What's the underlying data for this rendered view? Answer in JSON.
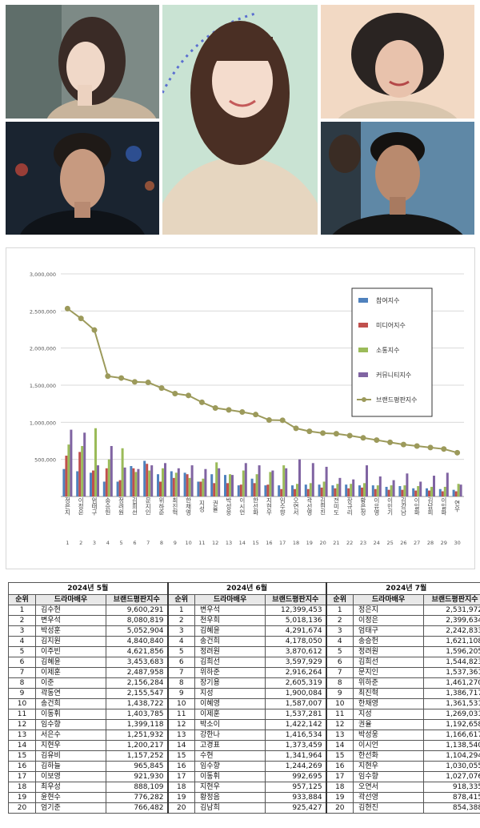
{
  "collage": {
    "photos": [
      {
        "id": "p1",
        "name": "actor-photo-top-left"
      },
      {
        "id": "p2",
        "name": "actor-photo-bottom-left"
      },
      {
        "id": "p3",
        "name": "actor-photo-center"
      },
      {
        "id": "p4",
        "name": "actor-photo-top-right"
      },
      {
        "id": "p5",
        "name": "actor-photo-bottom-right"
      }
    ]
  },
  "chart_data": {
    "type": "bar",
    "title": "",
    "xlabel": "",
    "ylabel": "",
    "ylim": [
      0,
      3000000
    ],
    "yticks": [
      "3,000,000",
      "2,500,000",
      "2,000,000",
      "1,500,000",
      "1,000,000",
      "500,000"
    ],
    "ytick_values": [
      3000000,
      2500000,
      2000000,
      1500000,
      1000000,
      500000
    ],
    "grid": true,
    "legend_position": "top-right",
    "categories": [
      "정은지",
      "이정은",
      "엄태구",
      "송승헌",
      "정려원",
      "김희선",
      "문지인",
      "위하준",
      "최진혁",
      "한채영",
      "지성",
      "권율",
      "박성웅",
      "이시언",
      "한선화",
      "지현우",
      "임수향",
      "오연서",
      "곽선영",
      "김현진",
      "전미도",
      "장규리",
      "황은정",
      "이유영",
      "이민기",
      "김강남",
      "이일화",
      "김남희",
      "이일화",
      "연우"
    ],
    "numbers": [
      "1",
      "2",
      "3",
      "4",
      "5",
      "6",
      "7",
      "8",
      "9",
      "10",
      "11",
      "12",
      "13",
      "14",
      "15",
      "16",
      "17",
      "18",
      "19",
      "20",
      "21",
      "22",
      "23",
      "24",
      "25",
      "26",
      "27",
      "28",
      "29",
      "30"
    ],
    "series": [
      {
        "name": "참여지수",
        "type": "bar",
        "color": "#4f81bd",
        "values": [
          370000,
          340000,
          320000,
          200000,
          200000,
          410000,
          480000,
          300000,
          340000,
          320000,
          200000,
          300000,
          290000,
          150000,
          240000,
          150000,
          150000,
          150000,
          160000,
          160000,
          150000,
          160000,
          150000,
          150000,
          130000,
          140000,
          110000,
          110000,
          100000,
          90000
        ]
      },
      {
        "name": "미디어지수",
        "type": "bar",
        "color": "#c0504d",
        "values": [
          550000,
          600000,
          350000,
          380000,
          220000,
          380000,
          440000,
          200000,
          250000,
          300000,
          200000,
          180000,
          180000,
          160000,
          180000,
          160000,
          100000,
          100000,
          100000,
          120000,
          110000,
          110000,
          120000,
          100000,
          90000,
          90000,
          80000,
          80000,
          70000,
          70000
        ]
      },
      {
        "name": "소통지수",
        "type": "bar",
        "color": "#9bbb59",
        "values": [
          700000,
          680000,
          920000,
          500000,
          650000,
          330000,
          350000,
          380000,
          320000,
          250000,
          240000,
          460000,
          300000,
          350000,
          300000,
          330000,
          420000,
          170000,
          180000,
          200000,
          170000,
          170000,
          180000,
          150000,
          150000,
          150000,
          140000,
          130000,
          130000,
          170000
        ]
      },
      {
        "name": "커뮤니티지수",
        "type": "bar",
        "color": "#8064a2",
        "values": [
          900000,
          860000,
          420000,
          680000,
          390000,
          370000,
          420000,
          450000,
          380000,
          420000,
          370000,
          380000,
          290000,
          450000,
          420000,
          350000,
          380000,
          500000,
          450000,
          400000,
          250000,
          230000,
          420000,
          270000,
          220000,
          310000,
          200000,
          280000,
          320000,
          160000
        ]
      },
      {
        "name": "브랜드평판지수",
        "type": "line",
        "color": "#9c9a5b",
        "values": [
          2531972,
          2399634,
          2242833,
          1621108,
          1596205,
          1544823,
          1537361,
          1461270,
          1386717,
          1361531,
          1269031,
          1192658,
          1166617,
          1138540,
          1104294,
          1030055,
          1027076,
          918335,
          878415,
          854388,
          846000,
          820000,
          790000,
          760000,
          730000,
          700000,
          680000,
          660000,
          640000,
          590000
        ]
      }
    ]
  },
  "tables": {
    "months": [
      "2024년 5월",
      "2024년 6월",
      "2024년 7월"
    ],
    "headers": {
      "rank": "순위",
      "actor": "드라마배우",
      "index": "브랜드평판지수"
    },
    "rows": [
      [
        "1",
        "김수현",
        "9,600,291",
        "1",
        "변우석",
        "12,399,453",
        "1",
        "정은지",
        "2,531,972"
      ],
      [
        "2",
        "변우석",
        "8,080,819",
        "2",
        "천우희",
        "5,018,136",
        "2",
        "이정은",
        "2,399,634"
      ],
      [
        "3",
        "박성훈",
        "5,052,904",
        "3",
        "김혜윤",
        "4,291,674",
        "3",
        "엄태구",
        "2,242,833"
      ],
      [
        "4",
        "김지원",
        "4,840,840",
        "4",
        "송건희",
        "4,178,050",
        "4",
        "송승헌",
        "1,621,108"
      ],
      [
        "5",
        "이주빈",
        "4,621,856",
        "5",
        "정려원",
        "3,870,612",
        "5",
        "정려원",
        "1,596,205"
      ],
      [
        "6",
        "김혜윤",
        "3,453,683",
        "6",
        "김희선",
        "3,597,929",
        "6",
        "김희선",
        "1,544,823"
      ],
      [
        "7",
        "이제훈",
        "2,487,958",
        "7",
        "위하준",
        "2,916,264",
        "7",
        "문지인",
        "1,537,361"
      ],
      [
        "8",
        "이준",
        "2,156,284",
        "8",
        "장기용",
        "2,605,319",
        "8",
        "위하준",
        "1,461,270"
      ],
      [
        "9",
        "곽동연",
        "2,155,547",
        "9",
        "지성",
        "1,900,084",
        "9",
        "최진혁",
        "1,386,717"
      ],
      [
        "10",
        "송건희",
        "1,438,722",
        "10",
        "이혜영",
        "1,587,007",
        "10",
        "한채영",
        "1,361,531"
      ],
      [
        "11",
        "이동휘",
        "1,403,785",
        "11",
        "이제훈",
        "1,537,281",
        "11",
        "지성",
        "1,269,031"
      ],
      [
        "12",
        "임수향",
        "1,399,118",
        "12",
        "박소이",
        "1,422,142",
        "12",
        "권율",
        "1,192,658"
      ],
      [
        "13",
        "서은수",
        "1,251,932",
        "13",
        "강한나",
        "1,416,534",
        "13",
        "박성웅",
        "1,166,617"
      ],
      [
        "14",
        "지현우",
        "1,200,217",
        "14",
        "고경표",
        "1,373,459",
        "14",
        "이시언",
        "1,138,540"
      ],
      [
        "15",
        "김유비",
        "1,157,252",
        "15",
        "수현",
        "1,341,964",
        "15",
        "한선화",
        "1,104,294"
      ],
      [
        "16",
        "김하늘",
        "965,845",
        "16",
        "임수향",
        "1,244,269",
        "16",
        "지현우",
        "1,030,055"
      ],
      [
        "17",
        "이보영",
        "921,930",
        "17",
        "이동휘",
        "992,695",
        "17",
        "임수향",
        "1,027,076"
      ],
      [
        "18",
        "최우성",
        "888,109",
        "18",
        "지현우",
        "957,125",
        "18",
        "오연서",
        "918,335"
      ],
      [
        "19",
        "윤현수",
        "776,282",
        "19",
        "황정음",
        "933,884",
        "19",
        "곽선영",
        "878,415"
      ],
      [
        "20",
        "엄기준",
        "766,482",
        "20",
        "김남희",
        "925,427",
        "20",
        "김현진",
        "854,388"
      ]
    ]
  }
}
